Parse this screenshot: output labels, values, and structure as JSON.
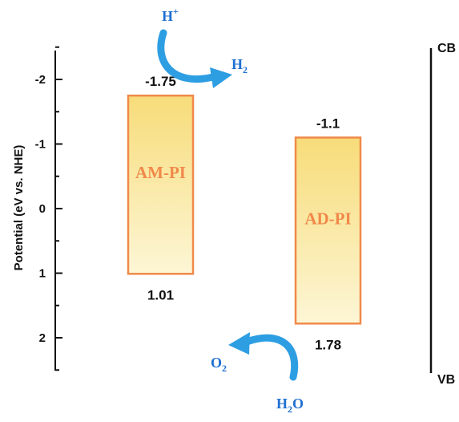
{
  "chart_data": {
    "type": "band-diagram",
    "ylabel": "Potential (eV vs. NHE)",
    "yticks": [
      "-2",
      "-1",
      "0",
      "1",
      "2"
    ],
    "ylim": [
      -2.5,
      2.5
    ],
    "inverted": true,
    "bands": [
      {
        "name": "AM-PI",
        "cb": -1.75,
        "vb": 1.01,
        "cb_label": "-1.75",
        "vb_label": "1.01"
      },
      {
        "name": "AD-PI",
        "cb": -1.1,
        "vb": 1.78,
        "cb_label": "-1.1",
        "vb_label": "1.78"
      }
    ],
    "reactions": {
      "reduction": {
        "reactant": "H",
        "reactant_sup": "+",
        "product": "H",
        "product_sub": "2"
      },
      "oxidation": {
        "reactant": "H",
        "reactant_sub": "2",
        "reactant_tail": "O",
        "product": "O",
        "product_sub": "2"
      }
    },
    "scale_labels": {
      "top": "CB",
      "bottom": "VB"
    },
    "colors": {
      "band_fill_top": "#f7dc79",
      "band_fill_bottom": "#fdf6d6",
      "band_stroke": "#f0894a",
      "arrow": "#2e9ee3",
      "text_blue": "#1f6fd1"
    }
  }
}
